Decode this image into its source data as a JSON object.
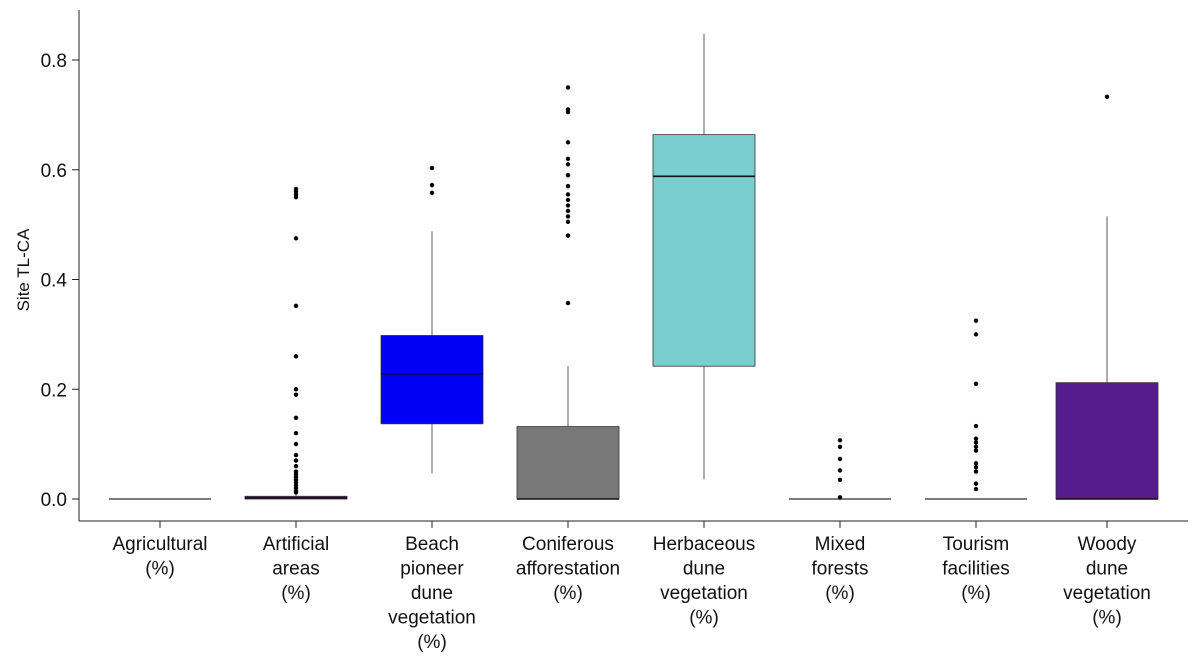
{
  "chart_data": {
    "type": "boxplot",
    "title": "",
    "xlabel": "",
    "ylabel": "Site TL-CA",
    "ylim": [
      -0.02,
      0.86
    ],
    "yticks": [
      "0.0",
      "0.2",
      "0.4",
      "0.6",
      "0.8"
    ],
    "grid": false,
    "legend": "none",
    "categories": [
      {
        "lines": [
          "Agricultural",
          "(%)"
        ],
        "color": "#7d7d7d",
        "q1": 0.0,
        "median": 0.0,
        "q3": 0.0,
        "whisker_low": 0.0,
        "whisker_high": 0.0,
        "outliers": []
      },
      {
        "lines": [
          "Artificial",
          "areas",
          "(%)"
        ],
        "color": "#6a2d8f",
        "q1": 0.0,
        "median": 0.002,
        "q3": 0.005,
        "whisker_low": 0.0,
        "whisker_high": 0.008,
        "outliers": [
          0.565,
          0.56,
          0.555,
          0.55,
          0.475,
          0.352,
          0.26,
          0.2,
          0.19,
          0.148,
          0.12,
          0.1,
          0.08,
          0.07,
          0.06,
          0.05,
          0.045,
          0.04,
          0.035,
          0.03,
          0.025,
          0.02,
          0.015,
          0.012
        ]
      },
      {
        "lines": [
          "Beach",
          "pioneer",
          "dune",
          "vegetation",
          "(%)"
        ],
        "color": "#0000f5",
        "q1": 0.137,
        "median": 0.228,
        "q3": 0.298,
        "whisker_low": 0.047,
        "whisker_high": 0.488,
        "outliers": [
          0.603,
          0.572,
          0.558
        ]
      },
      {
        "lines": [
          "Coniferous",
          "afforestation",
          "(%)"
        ],
        "color": "#787878",
        "q1": 0.0,
        "median": 0.0,
        "q3": 0.132,
        "whisker_low": 0.0,
        "whisker_high": 0.242,
        "outliers": [
          0.75,
          0.71,
          0.705,
          0.65,
          0.62,
          0.61,
          0.59,
          0.57,
          0.555,
          0.545,
          0.535,
          0.525,
          0.515,
          0.505,
          0.48,
          0.357
        ]
      },
      {
        "lines": [
          "Herbaceous",
          "dune",
          "vegetation",
          "(%)"
        ],
        "color": "#7acfce",
        "q1": 0.242,
        "median": 0.588,
        "q3": 0.664,
        "whisker_low": 0.036,
        "whisker_high": 0.848,
        "outliers": []
      },
      {
        "lines": [
          "Mixed",
          "forests",
          "(%)"
        ],
        "color": "#7d7d7d",
        "q1": 0.0,
        "median": 0.0,
        "q3": 0.0,
        "whisker_low": 0.0,
        "whisker_high": 0.0,
        "outliers": [
          0.107,
          0.095,
          0.073,
          0.052,
          0.035,
          0.003
        ]
      },
      {
        "lines": [
          "Tourism",
          "facilities",
          "(%)"
        ],
        "color": "#7d7d7d",
        "q1": 0.0,
        "median": 0.0,
        "q3": 0.0,
        "whisker_low": 0.0,
        "whisker_high": 0.0,
        "outliers": [
          0.325,
          0.3,
          0.21,
          0.133,
          0.11,
          0.103,
          0.095,
          0.088,
          0.065,
          0.058,
          0.05,
          0.028,
          0.018
        ]
      },
      {
        "lines": [
          "Woody",
          "dune",
          "vegetation",
          "(%)"
        ],
        "color": "#541b8c",
        "q1": 0.0,
        "median": 0.0,
        "q3": 0.212,
        "whisker_low": 0.0,
        "whisker_high": 0.515,
        "outliers": [
          0.733
        ]
      }
    ]
  }
}
